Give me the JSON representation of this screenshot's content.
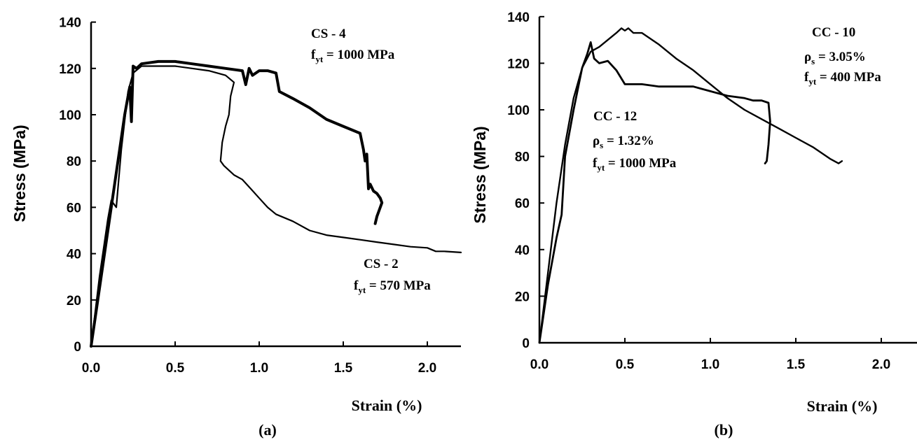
{
  "chart_data": [
    {
      "type": "line",
      "panel_label": "(a)",
      "xlabel": "Strain (%)",
      "ylabel": "Stress (MPa)",
      "xlim": [
        0,
        2.2
      ],
      "ylim": [
        0,
        140
      ],
      "xticks": [
        "0.0",
        "0.5",
        "1.0",
        "1.5",
        "2.0"
      ],
      "yticks": [
        "0",
        "20",
        "40",
        "60",
        "80",
        "100",
        "120",
        "140"
      ],
      "grid": false,
      "annotations": [
        {
          "id": "cs4_name",
          "text": "CS - 4"
        },
        {
          "id": "cs4_fyt",
          "text": "f",
          "sub": "yt",
          "rest": " = 1000 MPa"
        },
        {
          "id": "cs2_name",
          "text": "CS - 2"
        },
        {
          "id": "cs2_fyt",
          "text": "f",
          "sub": "yt",
          "rest": " = 570 MPa"
        }
      ],
      "series": [
        {
          "name": "CS - 4",
          "stroke": 4,
          "x": [
            0,
            0.05,
            0.1,
            0.15,
            0.2,
            0.23,
            0.24,
            0.25,
            0.27,
            0.3,
            0.4,
            0.5,
            0.6,
            0.7,
            0.8,
            0.9,
            0.92,
            0.94,
            0.96,
            1.0,
            1.05,
            1.1,
            1.12,
            1.2,
            1.3,
            1.4,
            1.5,
            1.6,
            1.62,
            1.63,
            1.64,
            1.65,
            1.66,
            1.68,
            1.7,
            1.72,
            1.73,
            1.71,
            1.7,
            1.69
          ],
          "y": [
            0,
            25,
            50,
            75,
            100,
            112,
            97,
            121,
            120,
            122,
            123,
            123,
            122,
            121,
            120,
            119,
            113,
            120,
            117,
            119,
            119,
            118,
            110,
            107,
            103,
            98,
            95,
            92,
            85,
            80,
            83,
            68,
            70,
            67,
            66,
            64,
            62,
            58,
            56,
            53
          ]
        },
        {
          "name": "CS - 2",
          "stroke": 2.2,
          "x": [
            0,
            0.05,
            0.08,
            0.1,
            0.12,
            0.15,
            0.18,
            0.22,
            0.25,
            0.3,
            0.4,
            0.5,
            0.6,
            0.7,
            0.8,
            0.85,
            0.83,
            0.82,
            0.8,
            0.78,
            0.77,
            0.79,
            0.82,
            0.85,
            0.9,
            0.95,
            1.0,
            1.05,
            1.1,
            1.2,
            1.3,
            1.4,
            1.5,
            1.6,
            1.7,
            1.8,
            1.9,
            2.0,
            2.05,
            2.1,
            2.2
          ],
          "y": [
            0,
            30,
            45,
            55,
            63,
            60,
            85,
            110,
            118,
            121,
            121,
            121,
            120,
            119,
            117,
            114,
            108,
            100,
            95,
            88,
            80,
            78,
            76,
            74,
            72,
            68,
            64,
            60,
            57,
            54,
            50,
            48,
            47,
            46,
            45,
            44,
            43,
            42.5,
            41,
            41,
            40.5
          ]
        }
      ]
    },
    {
      "type": "line",
      "panel_label": "(b)",
      "xlabel": "Strain (%)",
      "ylabel": "Stress (MPa)",
      "xlim": [
        0,
        2.25
      ],
      "ylim": [
        0,
        140
      ],
      "xticks": [
        "0.0",
        "0.5",
        "1.0",
        "1.5",
        "2.0"
      ],
      "yticks": [
        "0",
        "20",
        "40",
        "60",
        "80",
        "100",
        "120",
        "140"
      ],
      "grid": false,
      "annotations": [
        {
          "id": "cc10_name",
          "text": "CC - 10"
        },
        {
          "id": "cc10_rho",
          "text": "ρ",
          "sub": "s",
          "rest": " = 3.05%"
        },
        {
          "id": "cc10_fyt",
          "text": "f",
          "sub": "yt",
          "rest": " = 400 MPa"
        },
        {
          "id": "cc12_name",
          "text": "CC - 12"
        },
        {
          "id": "cc12_rho",
          "text": "ρ",
          "sub": "s",
          "rest": " = 1.32%"
        },
        {
          "id": "cc12_fyt",
          "text": "f",
          "sub": "yt",
          "rest": " = 1000 MPa"
        }
      ],
      "series": [
        {
          "name": "CC - 10",
          "stroke": 2.4,
          "x": [
            0,
            0.05,
            0.1,
            0.15,
            0.2,
            0.25,
            0.3,
            0.35,
            0.4,
            0.45,
            0.48,
            0.5,
            0.52,
            0.55,
            0.6,
            0.7,
            0.8,
            0.9,
            1.0,
            1.1,
            1.2,
            1.3,
            1.4,
            1.5,
            1.6,
            1.7,
            1.75,
            1.77
          ],
          "y": [
            0,
            30,
            60,
            85,
            105,
            118,
            125,
            127,
            130,
            133,
            135,
            134,
            135,
            133,
            133,
            128,
            122,
            117,
            111,
            105,
            100,
            96,
            92,
            88,
            84,
            79,
            77,
            78
          ]
        },
        {
          "name": "CC - 12",
          "stroke": 2.8,
          "x": [
            0,
            0.05,
            0.1,
            0.13,
            0.15,
            0.2,
            0.25,
            0.28,
            0.3,
            0.32,
            0.35,
            0.4,
            0.45,
            0.5,
            0.6,
            0.7,
            0.8,
            0.9,
            1.0,
            1.1,
            1.2,
            1.25,
            1.3,
            1.34,
            1.35,
            1.34,
            1.33,
            1.32
          ],
          "y": [
            0,
            25,
            45,
            55,
            80,
            100,
            118,
            124,
            129,
            122,
            120,
            121,
            117,
            111,
            111,
            110,
            110,
            110,
            108,
            106,
            105,
            104,
            104,
            103,
            95,
            85,
            78,
            77
          ]
        }
      ]
    }
  ]
}
